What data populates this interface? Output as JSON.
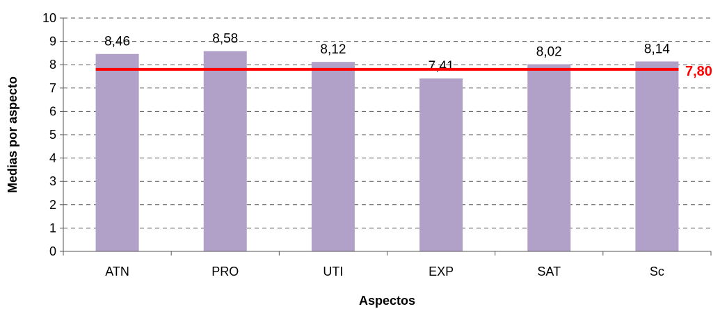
{
  "chart_data": {
    "type": "bar",
    "title": "",
    "xlabel": "Aspectos",
    "ylabel": "Medias por aspecto",
    "categories": [
      "ATN",
      "PRO",
      "UTI",
      "EXP",
      "SAT",
      "Sc"
    ],
    "values": [
      8.46,
      8.58,
      8.12,
      7.41,
      8.02,
      8.14
    ],
    "value_labels": [
      "8,46",
      "8,58",
      "8,12",
      "7,41",
      "8,02",
      "8,14"
    ],
    "ylim": [
      0,
      10
    ],
    "yticks": [
      "0",
      "1",
      "2",
      "3",
      "4",
      "5",
      "6",
      "7",
      "8",
      "9",
      "10"
    ],
    "grid": "horizontal-dashed",
    "reference_line": {
      "value": 7.8,
      "label": "7,80",
      "color": "#ff0000"
    },
    "bar_color": "#b1a0c7"
  }
}
